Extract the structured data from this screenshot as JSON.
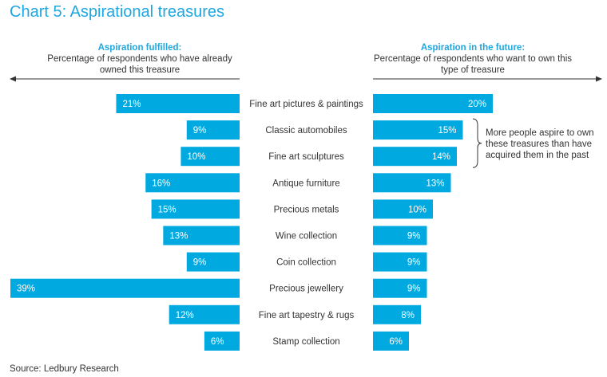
{
  "title": "Chart 5: Aspirational treasures",
  "left_header": {
    "title": "Aspiration fulfilled:",
    "subtitle": "Percentage of respondents who have already owned this treasure"
  },
  "right_header": {
    "title": "Aspiration in the future:",
    "subtitle": "Percentage of respondents who want to own this type of treasure"
  },
  "annotation": "More people aspire to own these treasures than have acquired them in the past",
  "source": "Source: Ledbury Research",
  "colors": {
    "bar": "#00a9e0",
    "title": "#1ea7e1",
    "axis": "#333333"
  },
  "chart_data": {
    "type": "bar",
    "orientation": "horizontal-butterfly",
    "categories": [
      "Fine art pictures & paintings",
      "Classic automobiles",
      "Fine art sculptures",
      "Antique furniture",
      "Precious metals",
      "Wine collection",
      "Coin collection",
      "Precious jewellery",
      "Fine art tapestry & rugs",
      "Stamp collection"
    ],
    "series": [
      {
        "name": "Aspiration fulfilled",
        "values": [
          21,
          9,
          10,
          16,
          15,
          13,
          9,
          39,
          12,
          6
        ]
      },
      {
        "name": "Aspiration in the future",
        "values": [
          20,
          15,
          14,
          13,
          10,
          9,
          9,
          9,
          8,
          6
        ]
      }
    ],
    "value_suffix": "%"
  }
}
